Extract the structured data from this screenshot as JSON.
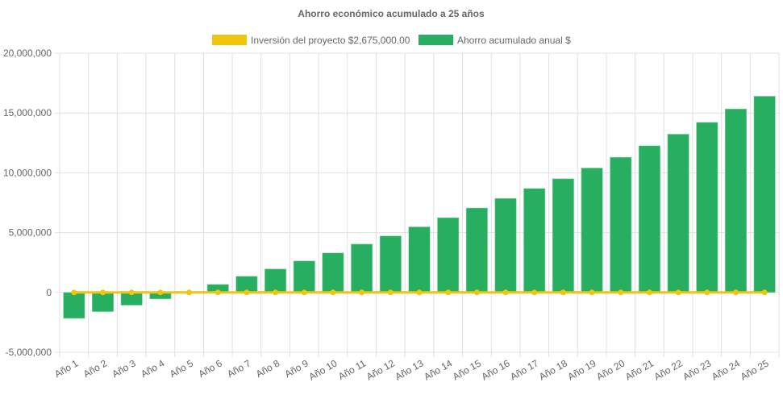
{
  "chart_data": {
    "type": "bar",
    "title": "Ahorro económico acumulado a 25 años",
    "xlabel": "",
    "ylabel": "",
    "ylim": [
      -5000000,
      20000000
    ],
    "yticks": [
      "20,000,000",
      "15,000,000",
      "10,000,000",
      "5,000,000",
      "0",
      "-5,000,000"
    ],
    "ytick_values": [
      20000000,
      15000000,
      10000000,
      5000000,
      0,
      -5000000
    ],
    "grid": true,
    "legend_position": "top",
    "categories": [
      "Año 1",
      "Año 2",
      "Año 3",
      "Año 4",
      "Año 5",
      "Año 6",
      "Año 7",
      "Año 8",
      "Año 9",
      "Año 10",
      "Año 11",
      "Año 12",
      "Año 13",
      "Año 14",
      "Año 15",
      "Año 16",
      "Año 17",
      "Año 18",
      "Año 19",
      "Año 20",
      "Año 21",
      "Año 22",
      "Año 23",
      "Año 24",
      "Año 25"
    ],
    "series": [
      {
        "name": "Inversión del proyecto $2,675,000.00",
        "type": "line",
        "color": "#f1c40f",
        "values": [
          0,
          0,
          0,
          0,
          0,
          0,
          0,
          0,
          0,
          0,
          0,
          0,
          0,
          0,
          0,
          0,
          0,
          0,
          0,
          0,
          0,
          0,
          0,
          0,
          0
        ]
      },
      {
        "name": "Ahorro acumulado anual $",
        "type": "bar",
        "color": "#27ae60",
        "values": [
          -2160000,
          -1600000,
          -1060000,
          -540000,
          0,
          670000,
          1350000,
          1960000,
          2630000,
          3300000,
          4040000,
          4720000,
          5480000,
          6250000,
          7060000,
          7860000,
          8690000,
          9500000,
          10400000,
          11300000,
          12260000,
          13230000,
          14220000,
          15340000,
          16400000
        ]
      }
    ]
  }
}
